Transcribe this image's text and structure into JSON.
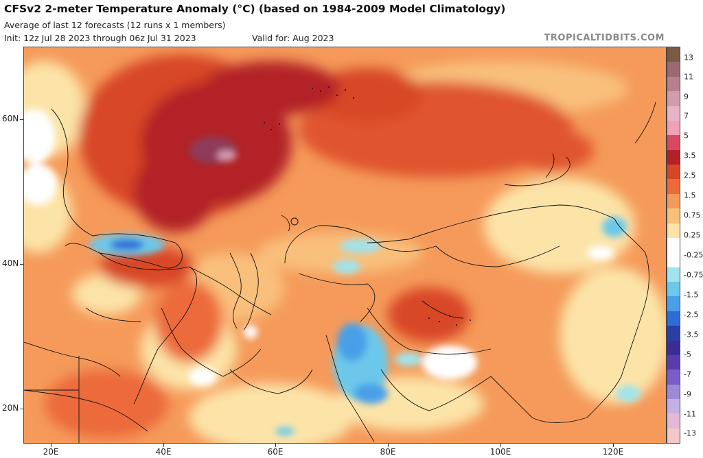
{
  "header": {
    "title": "CFSv2 2-meter Temperature Anomaly (°C) (based on 1984-2009 Model Climatology)",
    "subtitle": "Average of last 12 forecasts (12 runs x 1 members)",
    "init": "Init: 12z Jul 28 2023 through 06z Jul 31 2023",
    "valid": "Valid for: Aug 2023",
    "credit": "TROPICALTIDBITS.COM"
  },
  "axes": {
    "lat_labels": [
      "60N",
      "40N",
      "20N"
    ],
    "lon_labels": [
      "20E",
      "40E",
      "60E",
      "80E",
      "100E",
      "120E"
    ]
  },
  "colorbar": {
    "labels": [
      "13",
      "11",
      "9",
      "7",
      "5",
      "3.5",
      "2.5",
      "1.5",
      "0.75",
      "0.25",
      "-0.25",
      "-0.75",
      "-1.5",
      "-2.5",
      "-3.5",
      "-5",
      "-7",
      "-9",
      "-11",
      "-13"
    ],
    "colors": [
      "#7a5a44",
      "#9b6a70",
      "#b8808e",
      "#d39bb0",
      "#e8b4c8",
      "#f4a0b4",
      "#d94860",
      "#b22028",
      "#d84628",
      "#ec6a3a",
      "#f59a5a",
      "#f9c07c",
      "#fce4a8",
      "#ffffff",
      "#ffffff",
      "#9fe4ee",
      "#6cc8ea",
      "#4aa0e8",
      "#2e6cd8",
      "#2a3ea8",
      "#3c2c98",
      "#5a3cb0",
      "#7c5cc8",
      "#a088d8",
      "#c4b0e4",
      "#e6b8d8",
      "#f4c8c8"
    ]
  },
  "map_data": {
    "region": "Europe / Middle East / Asia",
    "variable": "2-meter temperature anomaly",
    "units": "°C",
    "warm_anomaly_max_region": "western Russia (above 3.5)",
    "cool_anomaly_regions": [
      "Black Sea",
      "northwest India / Pakistan",
      "Tajikistan / Kyrgyzstan",
      "northern Korea / Manchuria"
    ],
    "colors": {
      "strong_warm": "#b22028",
      "warm": "#ec6a3a",
      "mild_warm": "#f9c07c",
      "neutral": "#ffffff",
      "cool": "#6cc8ea",
      "cold": "#2e6cd8"
    }
  }
}
